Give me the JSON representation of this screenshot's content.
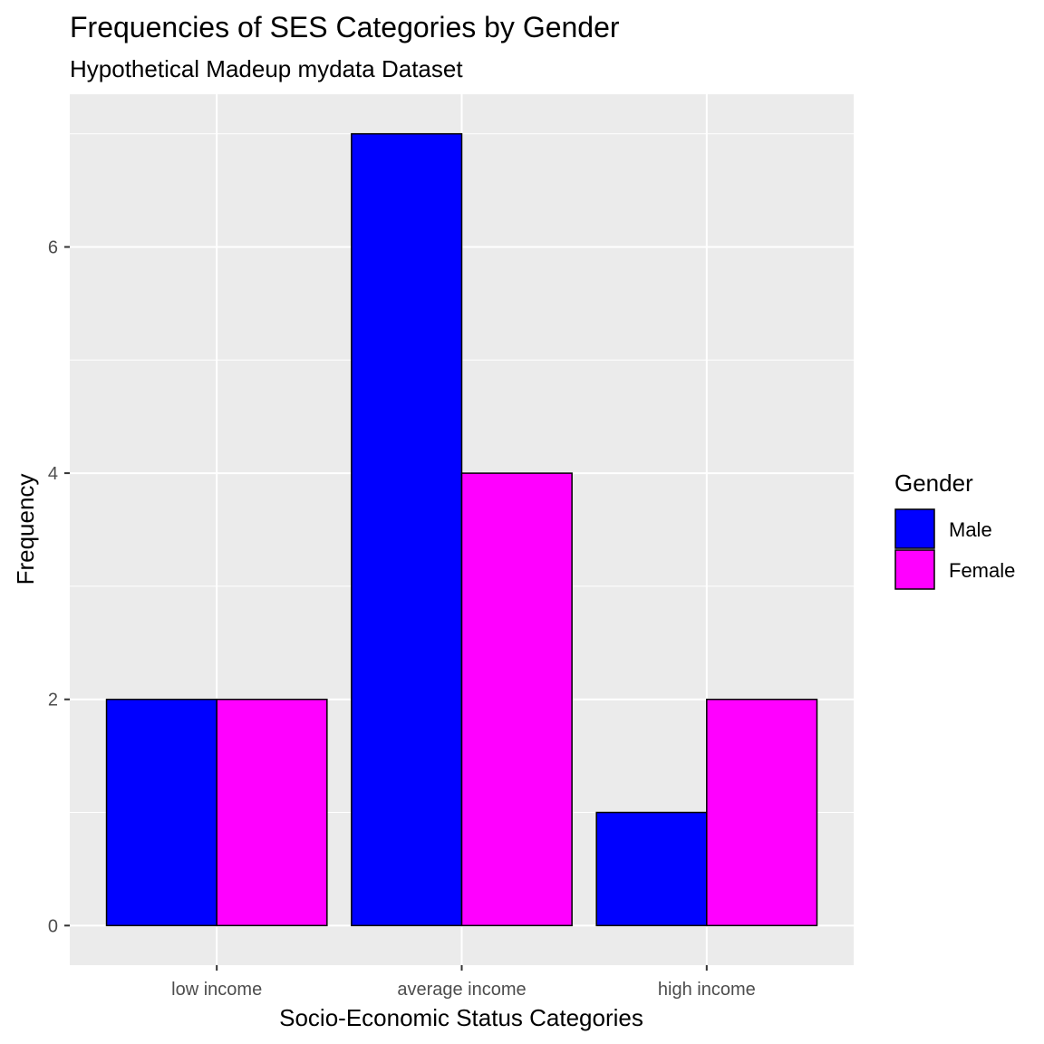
{
  "chart_data": {
    "type": "bar",
    "title": "Frequencies of SES Categories by Gender",
    "subtitle": "Hypothetical Madeup mydata Dataset",
    "xlabel": "Socio-Economic Status Categories",
    "ylabel": "Frequency",
    "categories": [
      "low income",
      "average income",
      "high income"
    ],
    "series": [
      {
        "name": "Male",
        "values": [
          2,
          7,
          1
        ],
        "color": "#0000FF"
      },
      {
        "name": "Female",
        "values": [
          2,
          4,
          2
        ],
        "color": "#FF00FF"
      }
    ],
    "ylim": [
      -0.35,
      7.35
    ],
    "yticks": [
      0,
      2,
      4,
      6
    ],
    "ytick_labels": [
      "0",
      "2",
      "4",
      "6"
    ],
    "grid": true,
    "legend": {
      "title": "Gender",
      "placement": "right"
    }
  }
}
